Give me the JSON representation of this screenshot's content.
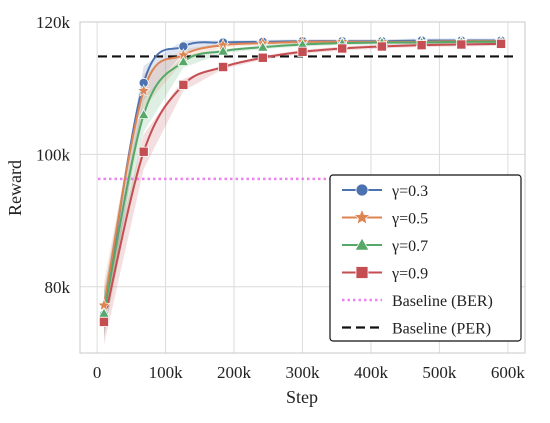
{
  "chart_data": {
    "type": "line",
    "title": "",
    "xlabel": "Step",
    "ylabel": "Reward",
    "xlim": [
      -25000,
      625000
    ],
    "ylim": [
      70000,
      120000
    ],
    "xticks": [
      0,
      100000,
      200000,
      300000,
      400000,
      500000,
      600000
    ],
    "xtick_labels": [
      "0",
      "100k",
      "200k",
      "300k",
      "400k",
      "500k",
      "600k"
    ],
    "yticks": [
      80000,
      100000,
      120000
    ],
    "ytick_labels": [
      "80k",
      "100k",
      "120k"
    ],
    "grid": true,
    "legend_position": "lower-right",
    "series": [
      {
        "name": "γ=0.3",
        "color": "#4c72b0",
        "marker": "circle",
        "x": [
          10000,
          68000,
          126000,
          184000,
          242000,
          300000,
          358000,
          416000,
          474000,
          532000,
          590000
        ],
        "values": [
          75800,
          110800,
          116300,
          116900,
          117000,
          117100,
          117100,
          117100,
          117200,
          117200,
          117200
        ]
      },
      {
        "name": "γ=0.5",
        "color": "#dd8452",
        "marker": "star",
        "x": [
          10000,
          68000,
          126000,
          184000,
          242000,
          300000,
          358000,
          416000,
          474000,
          532000,
          590000
        ],
        "values": [
          77200,
          109600,
          115000,
          116500,
          116800,
          117000,
          117000,
          117000,
          117000,
          117100,
          117100
        ]
      },
      {
        "name": "γ=0.7",
        "color": "#55a868",
        "marker": "triangle",
        "x": [
          10000,
          68000,
          126000,
          184000,
          242000,
          300000,
          358000,
          416000,
          474000,
          532000,
          590000
        ],
        "values": [
          76000,
          106000,
          114000,
          115600,
          116200,
          116600,
          116800,
          116900,
          116900,
          117000,
          117000
        ]
      },
      {
        "name": "γ=0.9",
        "color": "#c44e52",
        "marker": "square",
        "x": [
          10000,
          68000,
          126000,
          184000,
          242000,
          300000,
          358000,
          416000,
          474000,
          532000,
          590000
        ],
        "values": [
          74700,
          100400,
          110500,
          113200,
          114600,
          115500,
          116000,
          116300,
          116500,
          116600,
          116700
        ]
      }
    ],
    "baselines": [
      {
        "name": "Baseline (BER)",
        "color": "#ee82ee",
        "style": "dotted",
        "value": 96300
      },
      {
        "name": "Baseline (PER)",
        "color": "#111111",
        "style": "dashed",
        "value": 114800
      }
    ]
  }
}
